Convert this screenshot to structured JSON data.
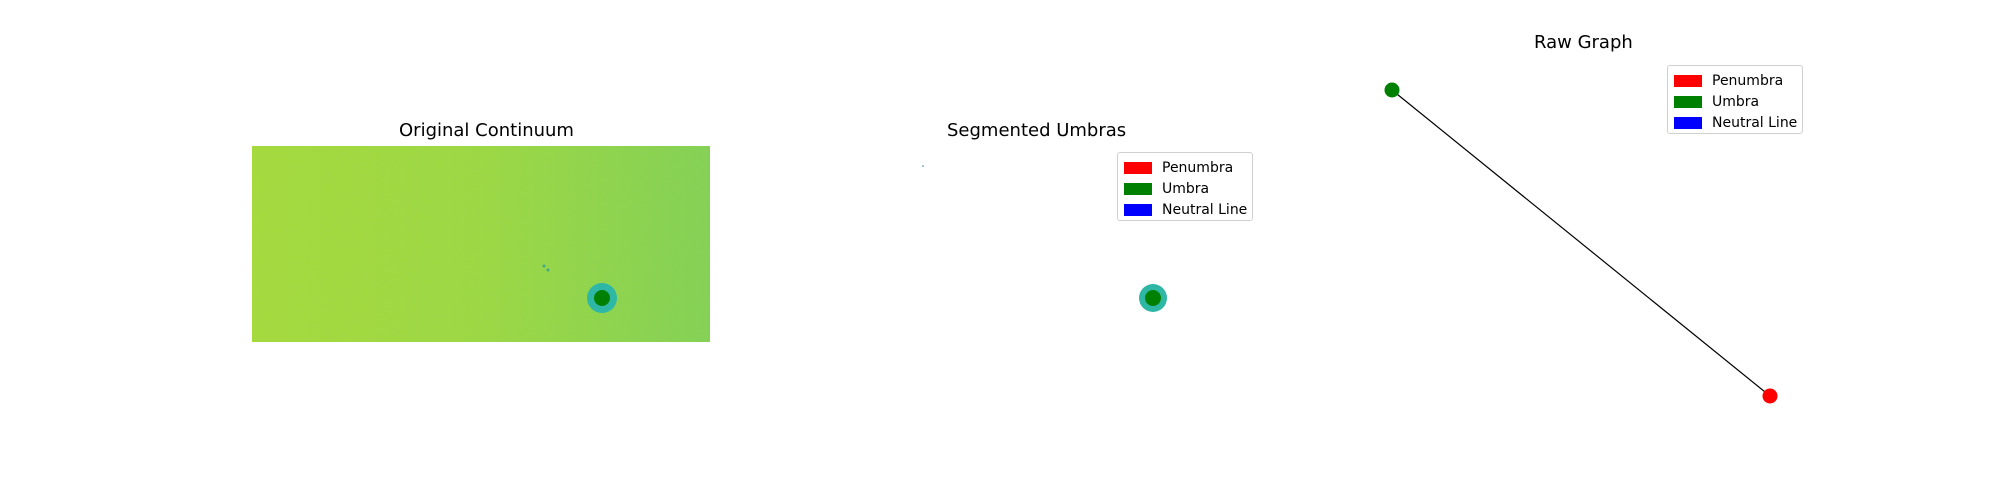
{
  "colors": {
    "penumbra": "#ff0000",
    "umbra": "#008000",
    "neutral_line": "#0000ff",
    "continuum_bg": "#9fd93a",
    "penumbra_ring": "#2fb7a6",
    "edge": "#000000"
  },
  "chart_data": [
    {
      "type": "heatmap",
      "title": "Original Continuum",
      "image": {
        "width": 458,
        "height": 196
      },
      "features": [
        {
          "kind": "sunspot",
          "x": 350,
          "y": 152,
          "umbra_radius": 8,
          "penumbra_radius": 15
        }
      ],
      "axes_visible": false
    },
    {
      "type": "heatmap",
      "title": "Segmented Umbras",
      "legend": [
        "Penumbra",
        "Umbra",
        "Neutral Line"
      ],
      "features": [
        {
          "kind": "sunspot",
          "x": 350,
          "y": 152,
          "umbra_radius": 8,
          "penumbra_radius": 14
        }
      ],
      "axes_visible": false
    },
    {
      "type": "scatter",
      "title": "Raw Graph",
      "legend": [
        "Penumbra",
        "Umbra",
        "Neutral Line"
      ],
      "nodes": [
        {
          "label": "Umbra",
          "x": 0,
          "y": 1
        },
        {
          "label": "Penumbra",
          "x": 1,
          "y": 0
        }
      ],
      "edges": [
        [
          0,
          1
        ]
      ],
      "axes_visible": false
    }
  ]
}
